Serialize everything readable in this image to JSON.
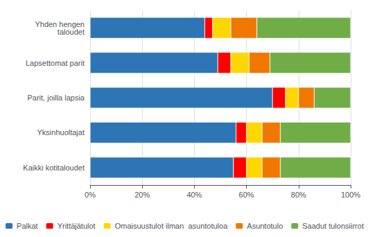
{
  "chart_data": {
    "type": "bar",
    "orientation": "horizontal",
    "stacked": true,
    "categories": [
      "Kaikki kotitaloudet",
      "Yksinhuoltajat",
      "Parit, joilla lapsia",
      "Lapsettomat parit",
      "Yhden hengen\ntaloudet"
    ],
    "series": [
      {
        "name": "Palkat",
        "color": "#2E75B6",
        "values": [
          55,
          56,
          70,
          49,
          44
        ]
      },
      {
        "name": "Yrittäjätulot",
        "color": "#FF0000",
        "values": [
          5,
          4,
          5,
          5,
          3
        ]
      },
      {
        "name": "Omaisuustulot ilman  asuntotuloa",
        "color": "#FFD700",
        "values": [
          6,
          6,
          5,
          7,
          7
        ]
      },
      {
        "name": "Asuntotulo",
        "color": "#F07800",
        "values": [
          7,
          7,
          6,
          8,
          10
        ]
      },
      {
        "name": "Saadut tulonsiirrot",
        "color": "#70AD47",
        "values": [
          27,
          27,
          14,
          31,
          36
        ]
      }
    ],
    "xlim": [
      0,
      100
    ],
    "xticks": [
      {
        "value": 0,
        "label": "0%"
      },
      {
        "value": 20,
        "label": "20%"
      },
      {
        "value": 40,
        "label": "40%"
      },
      {
        "value": 60,
        "label": "60%"
      },
      {
        "value": 80,
        "label": "80%"
      },
      {
        "value": 100,
        "label": "100%"
      }
    ],
    "grid": true,
    "legend": "bottom"
  }
}
